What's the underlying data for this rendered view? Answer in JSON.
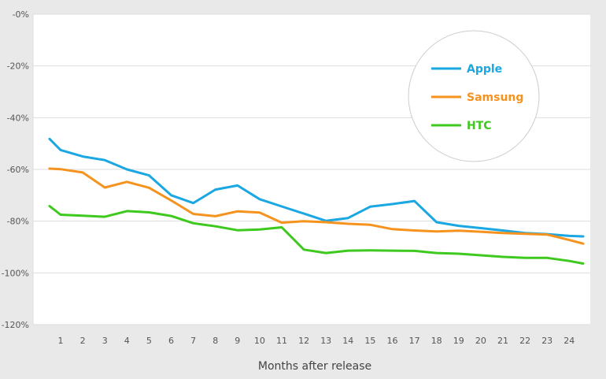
{
  "chart_data": {
    "type": "line",
    "xlabel": "Months after release",
    "ylabel": "",
    "title": "",
    "x": [
      1,
      2,
      3,
      4,
      5,
      6,
      7,
      8,
      9,
      10,
      11,
      12,
      13,
      14,
      15,
      16,
      17,
      18,
      19,
      20,
      21,
      22,
      23,
      24
    ],
    "xlim": [
      0,
      24.7
    ],
    "ylim": [
      -120,
      0
    ],
    "y_ticks": [
      0,
      -20,
      -40,
      -60,
      -80,
      -100,
      -120
    ],
    "y_tick_labels": [
      "-0%",
      "-20%",
      "-40%",
      "-60%",
      "-80%",
      "-100%",
      "-120%"
    ],
    "x_tick_labels": [
      "1",
      "2",
      "3",
      "4",
      "5",
      "6",
      "7",
      "8",
      "9",
      "10",
      "11",
      "12",
      "13",
      "14",
      "15",
      "16",
      "17",
      "18",
      "19",
      "20",
      "21",
      "22",
      "23",
      "24"
    ],
    "grid": true,
    "legend_position": "top-right",
    "series": [
      {
        "name": "Apple",
        "color": "#1aa7e2",
        "x": [
          0,
          1,
          2,
          3,
          4,
          5,
          6,
          7,
          8,
          9,
          10,
          11,
          12,
          13,
          14,
          15,
          16,
          17,
          18,
          19,
          20,
          21,
          22,
          23,
          24,
          24.7
        ],
        "values": [
          -48.2,
          -52.5,
          -55,
          -56.4,
          -60,
          -62.3,
          -70,
          -73,
          -67.8,
          -66.2,
          -71.5,
          -74.3,
          -77.1,
          -79.9,
          -78.8,
          -74.4,
          -73.4,
          -72.2,
          -80.4,
          -81.8,
          -82.7,
          -83.6,
          -84.6,
          -85,
          -85.7,
          -85.9
        ]
      },
      {
        "name": "Samsung",
        "color": "#f6931e",
        "x": [
          0,
          1,
          2,
          3,
          4,
          5,
          6,
          7,
          8,
          9,
          10,
          11,
          12,
          13,
          14,
          15,
          16,
          17,
          18,
          19,
          20,
          21,
          22,
          23,
          24,
          24.7
        ],
        "values": [
          -59.7,
          -59.9,
          -61.2,
          -67,
          -64.8,
          -67.1,
          -72,
          -77.2,
          -78.1,
          -76.2,
          -76.7,
          -80.6,
          -80,
          -80.4,
          -81,
          -81.4,
          -83.1,
          -83.6,
          -84,
          -83.7,
          -84.1,
          -84.6,
          -84.9,
          -85.2,
          -87.3,
          -88.7
        ]
      },
      {
        "name": "HTC",
        "color": "#3ec91e",
        "x": [
          0,
          1,
          2,
          3,
          4,
          5,
          6,
          7,
          8,
          9,
          10,
          11,
          12,
          13,
          14,
          15,
          16,
          17,
          18,
          19,
          20,
          21,
          22,
          23,
          24,
          24.7
        ],
        "values": [
          -74.2,
          -77.5,
          -77.9,
          -78.3,
          -76.1,
          -76.6,
          -78,
          -80.8,
          -82,
          -83.5,
          -83.2,
          -82.4,
          -91,
          -92.3,
          -91.4,
          -91.3,
          -91.4,
          -91.5,
          -92.3,
          -92.6,
          -93.2,
          -93.8,
          -94.2,
          -94.2,
          -95.4,
          -96.4
        ]
      }
    ]
  }
}
